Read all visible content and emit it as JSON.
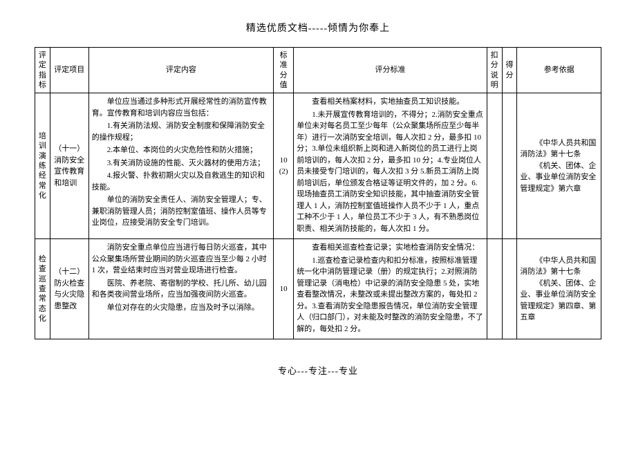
{
  "header": "精选优质文档-----倾情为你奉上",
  "footer": "专心---专注---专业",
  "columns": {
    "c1": "评定指标",
    "c2": "评定项目",
    "c3": "评定内容",
    "c4": "标准分值",
    "c5": "评分标准",
    "c6": "扣分说明",
    "c7": "得分",
    "c8": "参考依据"
  },
  "rows": [
    {
      "indicator": "培训演练经常化",
      "item_no": "（十一）",
      "item_name": "消防安全宣传教育和培训",
      "score": "10",
      "score_paren": "(2)",
      "content": [
        "单位应当通过多种形式开展经常性的消防宣传教育。宣传教育和培训内容应当包括：",
        "1.有关消防法规、消防安全制度和保障消防安全的操作规程；",
        "2.本单位、本岗位的火灾危险性和防火措施；",
        "3.有关消防设施的性能、灭火器材的使用方法；",
        "4.报火警、扑救初期火灾以及自救逃生的知识和技能。",
        "单位的消防安全责任人、消防安全管理人；专、兼职消防管理人员；消防控制室值班、操作人员等专业岗位，应接受消防安全专门培训。"
      ],
      "standard": [
        "查看相关档案材料，实地抽查员工知识技能。",
        "1.未开展宣传教育培训的，不得分；2.消防安全重点单位未对每名员工至少每年（公众聚集场所应至少每半年）进行一次消防安全培训，每人次扣 2 分，最多扣 10 分；3.单位未组织新上岗和进入新岗位的员工进行上岗前培训的，每人次扣 2 分，最多扣 10 分；4.专业岗位人员未接受专门培训的，每人次扣 3 分 5.新员工消防上岗前培训后，单位颁发合格证等证明文件的，加 2 分。6.现场抽查员工消防安全知识技能，其中抽查消防安全管理人 1 人，消防控制室值班操作人员不少于 1 人，重点工种不少于 1 人，单位员工不少于 3 人，有不熟悉岗位职责、相关消防技能的，每人次扣 1 分。"
      ],
      "reference": [
        "《中华人员共和国消防法》第十七条",
        "《机关、团体、企业、事业单位消防安全管理规定》第六章"
      ]
    },
    {
      "indicator": "检查巡查常态化",
      "item_no": "（十二）",
      "item_name": "防火检查与火灾隐患整改",
      "score": "10",
      "score_paren": "",
      "content": [
        "消防安全重点单位应当进行每日防火巡查，其中公众聚集场所营业期间的防火巡查应当至少每 2 小时 1 次，营业结束时应当对营业现场进行检查。",
        "医院、养老院、寄宿制的学校、托儿所、幼儿园和各类夜间营业场所，应当加强夜间防火巡查。",
        "单位对存在的火灾隐患，应当及时予以消除。"
      ],
      "standard": [
        "查看相关巡查检查记录；实地检查消防安全情况：",
        "1.巡查检查记录检查内和扣分标准，按照标准管理统一化中消防管理记录（册）的规定执行；2.对照消防管理记录（消电检）中记录的消防安全隐患 5 处，实地查看整改情况，未整改或未提出整改方案的，每处扣 2 分。3.查看消防安全隐患报告情况，单位消防安全管理人（归口部门），对未能及时整改的消防安全隐患，不了解的，每处扣 2 分。"
      ],
      "reference": [
        "《中华人员共和国消防法》第十七条",
        "《机关、团体、企业、事业单位消防安全管理规定》第四章、第五章"
      ]
    }
  ]
}
